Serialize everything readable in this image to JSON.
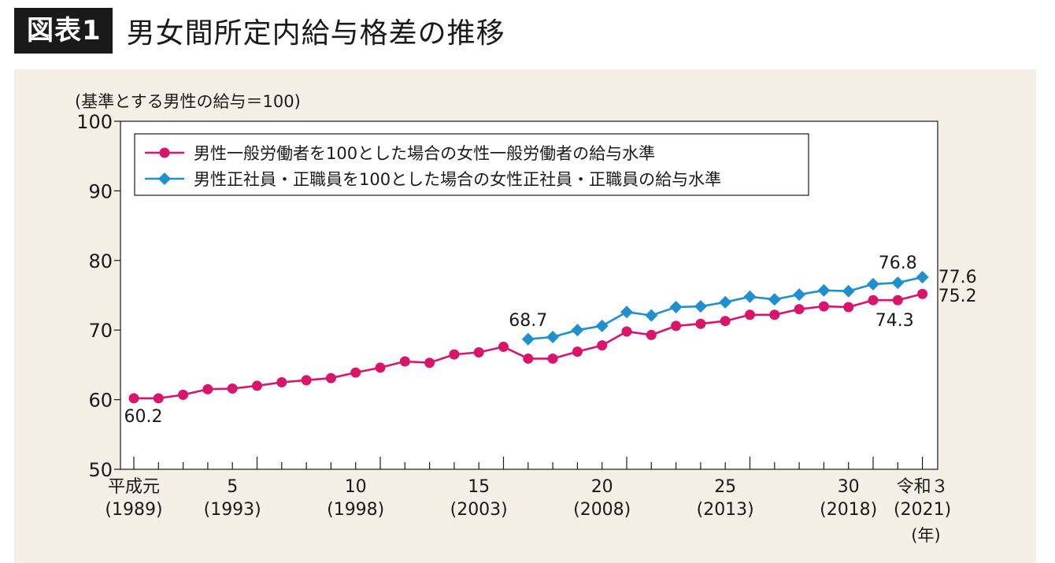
{
  "header": {
    "badge": "図表1",
    "title": "男女間所定内給与格差の推移"
  },
  "colors": {
    "series_female_general": "#d8156b",
    "series_female_regular": "#1f8fcf",
    "panel_bg": "#f4f0e6"
  },
  "chart_data": {
    "type": "line",
    "ylabel": "(基準とする男性の給与＝100)",
    "ylim": [
      50,
      100
    ],
    "yticks": [
      "100",
      "90",
      "80",
      "70",
      "60",
      "50"
    ],
    "x": [
      1989,
      1990,
      1991,
      1992,
      1993,
      1994,
      1995,
      1996,
      1997,
      1998,
      1999,
      2000,
      2001,
      2002,
      2003,
      2004,
      2005,
      2006,
      2007,
      2008,
      2009,
      2010,
      2011,
      2012,
      2013,
      2014,
      2015,
      2016,
      2017,
      2018,
      2019,
      2020,
      2021
    ],
    "xtick_labels": [
      {
        "line1": "平成元",
        "line2": "(1989)"
      },
      {
        "line1": "5",
        "line2": "(1993)"
      },
      {
        "line1": "10",
        "line2": "(1998)"
      },
      {
        "line1": "15",
        "line2": "(2003)"
      },
      {
        "line1": "20",
        "line2": "(2008)"
      },
      {
        "line1": "25",
        "line2": "(2013)"
      },
      {
        "line1": "30",
        "line2": "(2018)"
      },
      {
        "line1": "令和３",
        "line2": "(2021)"
      }
    ],
    "xunit": "(年)",
    "series": [
      {
        "name": "男性一般労働者を100とした場合の女性一般労働者の給与水準",
        "values": [
          60.2,
          60.2,
          60.7,
          61.5,
          61.6,
          62.0,
          62.5,
          62.8,
          63.1,
          63.9,
          64.6,
          65.5,
          65.3,
          66.5,
          66.8,
          67.6,
          65.9,
          65.9,
          66.9,
          67.8,
          69.8,
          69.3,
          70.6,
          70.9,
          71.3,
          72.2,
          72.2,
          73.0,
          73.4,
          73.3,
          74.3,
          74.3,
          75.2
        ]
      },
      {
        "name": "男性正社員・正職員を100とした場合の女性正社員・正職員の給与水準",
        "values": [
          null,
          null,
          null,
          null,
          null,
          null,
          null,
          null,
          null,
          null,
          null,
          null,
          null,
          null,
          null,
          null,
          68.7,
          69.0,
          70.0,
          70.6,
          72.6,
          72.1,
          73.3,
          73.4,
          74.0,
          74.8,
          74.4,
          75.1,
          75.7,
          75.6,
          76.6,
          76.8,
          77.6
        ]
      }
    ],
    "annotations": {
      "first_female_general": "60.2",
      "first_female_regular": "68.7",
      "regular_2020": "76.8",
      "regular_2021": "77.6",
      "general_2021": "75.2",
      "general_2020": "74.3"
    }
  }
}
